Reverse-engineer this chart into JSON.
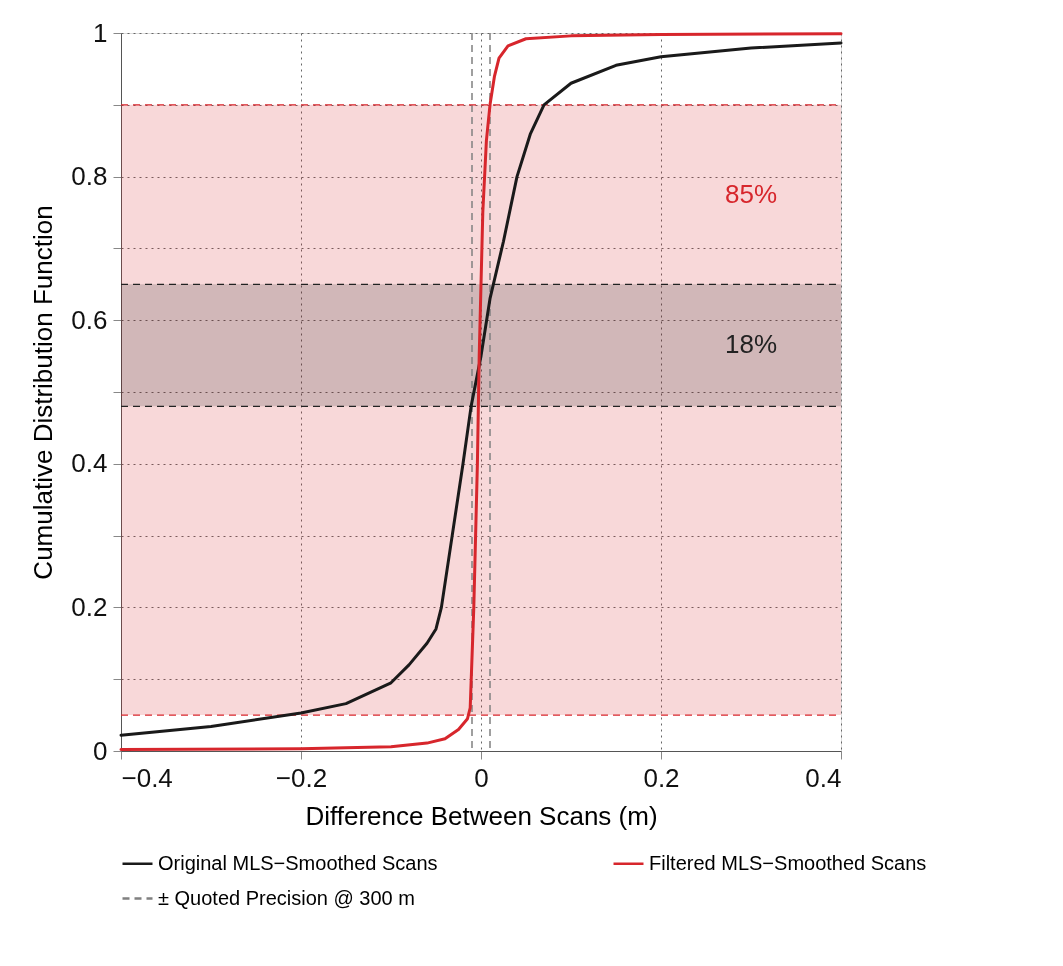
{
  "chart_data": {
    "type": "line",
    "xlabel": "Difference Between Scans (m)",
    "ylabel": "Cumulative Distribution Function",
    "xlim": [
      -0.4,
      0.4
    ],
    "ylim": [
      0,
      1
    ],
    "xticks": [
      {
        "value": -0.4,
        "label": "−0.4"
      },
      {
        "value": -0.2,
        "label": "−0.2"
      },
      0,
      0.2,
      0.4
    ],
    "yticks": [
      0,
      {
        "value": 0.1,
        "label": null
      },
      0.2,
      {
        "value": 0.3,
        "label": null
      },
      0.4,
      {
        "value": 0.5,
        "label": null
      },
      0.6,
      {
        "value": 0.7,
        "label": null
      },
      0.8,
      {
        "value": 0.9,
        "label": null
      },
      1
    ],
    "grid": true,
    "legend": "bottom",
    "line_style": "solid",
    "series": [
      {
        "name": "Original MLS−Smoothed Scans",
        "color": "#1a1a1a",
        "x": [
          -0.4,
          -0.3,
          -0.2,
          -0.15,
          -0.1,
          -0.08,
          -0.06,
          -0.05,
          -0.044,
          -0.032,
          -0.02,
          -0.011,
          0,
          0.01,
          0.025,
          0.04,
          0.055,
          0.07,
          0.1,
          0.15,
          0.2,
          0.3,
          0.4
        ],
        "values": [
          0.022,
          0.034,
          0.053,
          0.066,
          0.095,
          0.12,
          0.15,
          0.17,
          0.2,
          0.3,
          0.4,
          0.48,
          0.55,
          0.63,
          0.71,
          0.8,
          0.86,
          0.9,
          0.93,
          0.955,
          0.967,
          0.979,
          0.986
        ]
      },
      {
        "name": "Filtered MLS−Smoothed Scans",
        "color": "#d7262c",
        "x": [
          -0.4,
          -0.2,
          -0.1,
          -0.06,
          -0.04,
          -0.025,
          -0.015,
          -0.012,
          -0.008,
          -0.004,
          -0.002,
          0.002,
          0.006,
          0.01,
          0.015,
          0.02,
          0.03,
          0.05,
          0.1,
          0.2,
          0.4
        ],
        "values": [
          0.002,
          0.003,
          0.006,
          0.011,
          0.017,
          0.03,
          0.045,
          0.06,
          0.2,
          0.4,
          0.55,
          0.75,
          0.85,
          0.9,
          0.94,
          0.965,
          0.982,
          0.992,
          0.996,
          0.998,
          0.999
        ]
      }
    ],
    "ref_lines": [
      {
        "axis": "x",
        "value": -0.01,
        "label": "± Quoted Precision @ 300 m",
        "color": "#808080",
        "line_style": "dashed"
      },
      {
        "axis": "x",
        "value": 0.01,
        "color": "#808080",
        "line_style": "dashed"
      },
      {
        "axis": "y",
        "value": 0.05,
        "color": "#d7262c",
        "line_style": "dashed"
      },
      {
        "axis": "y",
        "value": 0.9,
        "color": "#d7262c",
        "line_style": "dashed"
      },
      {
        "axis": "y",
        "value": 0.48,
        "color": "#222222",
        "line_style": "dashed"
      },
      {
        "axis": "y",
        "value": 0.65,
        "color": "#222222",
        "line_style": "dashed"
      }
    ],
    "bands": [
      {
        "axis": "y",
        "from": 0.05,
        "to": 0.9,
        "color": "#d7262c"
      },
      {
        "axis": "y",
        "from": 0.48,
        "to": 0.65,
        "color": "#222222"
      }
    ],
    "annotations": [
      "85%",
      "18%"
    ]
  }
}
